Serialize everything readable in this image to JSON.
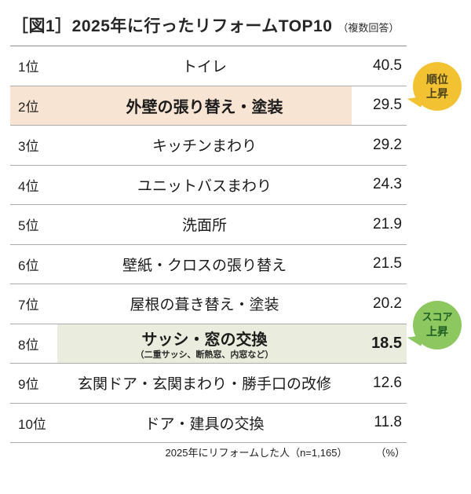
{
  "title": {
    "figure_label_and_main": "［図1］2025年に行ったリフォームTOP10",
    "note": "（複数回答）"
  },
  "table": {
    "rows": [
      {
        "rank": "1位",
        "item": "トイレ",
        "value": "40.5"
      },
      {
        "rank": "2位",
        "item": "外壁の張り替え・塗装",
        "value": "29.5"
      },
      {
        "rank": "3位",
        "item": "キッチンまわり",
        "value": "29.2"
      },
      {
        "rank": "4位",
        "item": "ユニットバスまわり",
        "value": "24.3"
      },
      {
        "rank": "5位",
        "item": "洗面所",
        "value": "21.9"
      },
      {
        "rank": "6位",
        "item": "壁紙・クロスの張り替え",
        "value": "21.5"
      },
      {
        "rank": "7位",
        "item": "屋根の葺き替え・塗装",
        "value": "20.2"
      },
      {
        "rank": "8位",
        "item": "サッシ・窓の交換",
        "item_note": "（二重サッシ、断熱窓、内窓など）",
        "value": "18.5"
      },
      {
        "rank": "9位",
        "item": "玄関ドア・玄関まわり・勝手口の改修",
        "value": "12.6"
      },
      {
        "rank": "10位",
        "item": "ドア・建具の交換",
        "value": "11.8"
      }
    ]
  },
  "badges": {
    "rank_up": {
      "lines": [
        "順位",
        "上昇"
      ],
      "color": "#F2C232",
      "text_color": "#4D431C"
    },
    "score_up": {
      "lines": [
        "スコア",
        "上昇"
      ],
      "color": "#8CC75F",
      "text_color": "#1E5E24"
    }
  },
  "highlights": {
    "orange_row_color": "#F8E4D2",
    "green_row_color": "#EAEDDD"
  },
  "footer": {
    "note": "2025年にリフォームした人（n=1,165）",
    "unit": "（%）"
  },
  "chart_data": {
    "type": "table",
    "title": "［図1］2025年に行ったリフォームTOP10（複数回答）",
    "categories": [
      "トイレ",
      "外壁の張り替え・塗装",
      "キッチンまわり",
      "ユニットバスまわり",
      "洗面所",
      "壁紙・クロスの張り替え",
      "屋根の葺き替え・塗装",
      "サッシ・窓の交換（二重サッシ、断熱窓、内窓など）",
      "玄関ドア・玄関まわり・勝手口の改修",
      "ドア・建具の交換"
    ],
    "values": [
      40.5,
      29.5,
      29.2,
      24.3,
      21.9,
      21.5,
      20.2,
      18.5,
      12.6,
      11.8
    ],
    "ranks": [
      "1位",
      "2位",
      "3位",
      "4位",
      "5位",
      "6位",
      "7位",
      "8位",
      "9位",
      "10位"
    ],
    "unit": "%",
    "sample_note": "2025年にリフォームした人（n=1,165）",
    "annotations": [
      {
        "row_rank": "2位",
        "badge": "順位上昇",
        "highlight": "orange"
      },
      {
        "row_rank": "8位",
        "badge": "スコア上昇",
        "highlight": "green"
      }
    ]
  }
}
